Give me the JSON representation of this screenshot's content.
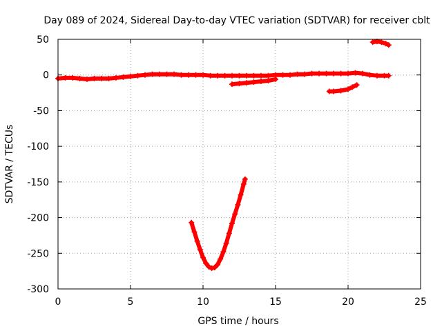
{
  "chart_data": {
    "type": "scatter",
    "title": "Day 089 of 2024, Sidereal Day-to-day VTEC variation (SDTVAR) for receiver cblt",
    "xlabel": "GPS time / hours",
    "ylabel": "SDTVAR / TECUs",
    "xlim": [
      0,
      25
    ],
    "ylim": [
      -300,
      50
    ],
    "xticks": [
      0,
      5,
      10,
      15,
      20,
      25
    ],
    "yticks": [
      50,
      0,
      -50,
      -100,
      -150,
      -200,
      -250,
      -300
    ],
    "grid": true,
    "marker": "plus",
    "color": "#ff0000",
    "series": [
      {
        "x": [
          0,
          0.5,
          1,
          1.5,
          2,
          2.5,
          3,
          3.5,
          4,
          4.5,
          5,
          5.5,
          6,
          6.5,
          7,
          7.5,
          8,
          8.5,
          9,
          9.5,
          10,
          10.5,
          11,
          11.5,
          12,
          12.5,
          13,
          13.5,
          14,
          14.5,
          15,
          15.5,
          16,
          16.5,
          17,
          17.5,
          18,
          18.5,
          19,
          19.5,
          20,
          20.5,
          21,
          21.5,
          22,
          22.5,
          22.8
        ],
        "values": [
          -5,
          -4,
          -4,
          -5,
          -6,
          -5,
          -5,
          -5,
          -4,
          -3,
          -2,
          -1,
          0,
          1,
          1,
          1,
          1,
          0,
          0,
          0,
          0,
          -1,
          -1,
          -1,
          -1,
          -1,
          -1,
          -1,
          -1,
          -1,
          0,
          0,
          0,
          1,
          1,
          2,
          2,
          2,
          2,
          2,
          2,
          3,
          2,
          0,
          -1,
          -1,
          -1
        ]
      },
      {
        "x": [
          12,
          12.5,
          13,
          13.5,
          14,
          14.5,
          15
        ],
        "values": [
          -13,
          -12,
          -11,
          -10,
          -9,
          -8,
          -6
        ]
      },
      {
        "x": [
          18.7,
          19,
          19.5,
          20,
          20.3,
          20.6
        ],
        "values": [
          -23,
          -23,
          -22,
          -20,
          -17,
          -14
        ]
      },
      {
        "x": [
          21.7,
          22,
          22.3,
          22.6,
          22.8
        ],
        "values": [
          46,
          47,
          46,
          44,
          42
        ]
      },
      {
        "x": [
          9.2,
          9.4,
          9.6,
          9.8,
          10,
          10.2,
          10.4,
          10.6,
          10.8,
          11,
          11.2,
          11.4,
          11.6,
          11.8,
          12,
          12.2,
          12.4,
          12.6,
          12.8,
          12.9
        ],
        "values": [
          -207,
          -220,
          -233,
          -245,
          -256,
          -264,
          -269,
          -271,
          -270,
          -266,
          -258,
          -248,
          -236,
          -222,
          -208,
          -195,
          -182,
          -168,
          -153,
          -146
        ]
      }
    ]
  }
}
